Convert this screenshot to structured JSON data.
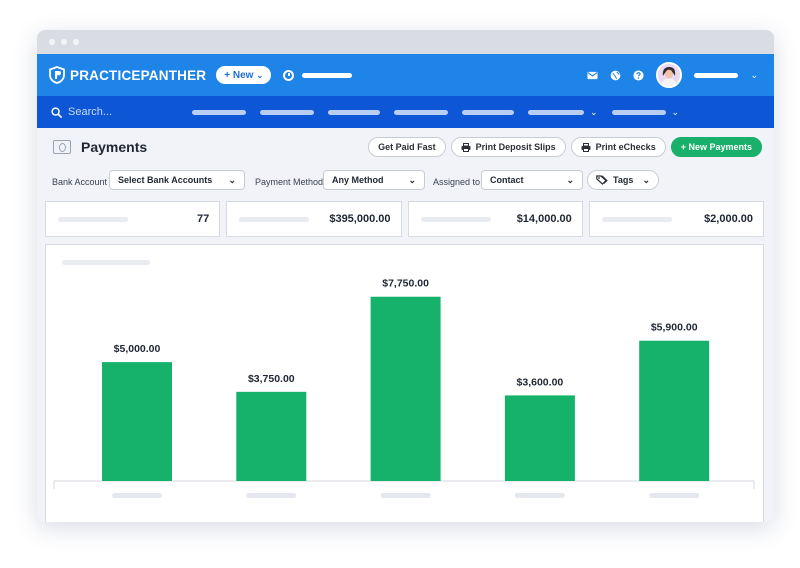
{
  "app": {
    "logo_text": "PRACTICEPANTHER",
    "new_button": "+ New",
    "search_placeholder": "Search..."
  },
  "page": {
    "title": "Payments",
    "actions": {
      "get_paid_fast": "Get Paid Fast",
      "print_deposit_slips": "Print Deposit Slips",
      "print_echecks": "Print eChecks",
      "new_payments": "+ New Payments"
    }
  },
  "filters": {
    "bank_account_label": "Bank Account",
    "bank_account_value": "Select Bank Accounts",
    "payment_method_label": "Payment Method",
    "payment_method_value": "Any Method",
    "assigned_to_label": "Assigned to",
    "assigned_to_value": "Contact",
    "tags_value": "Tags"
  },
  "stats": [
    "77",
    "$395,000.00",
    "$14,000.00",
    "$2,000.00"
  ],
  "colors": {
    "topbar": "#1e84e8",
    "searchbar": "#0d57d6",
    "bar": "#16b26c",
    "primary_button": "#18b06a"
  },
  "chart_data": {
    "type": "bar",
    "categories": [
      "",
      "",
      "",
      "",
      ""
    ],
    "values": [
      5000,
      3750,
      7750,
      3600,
      5900
    ],
    "data_labels": [
      "$5,000.00",
      "$3,750.00",
      "$7,750.00",
      "$3,600.00",
      "$5,900.00"
    ],
    "ylim": [
      0,
      9000
    ],
    "grid": false
  }
}
